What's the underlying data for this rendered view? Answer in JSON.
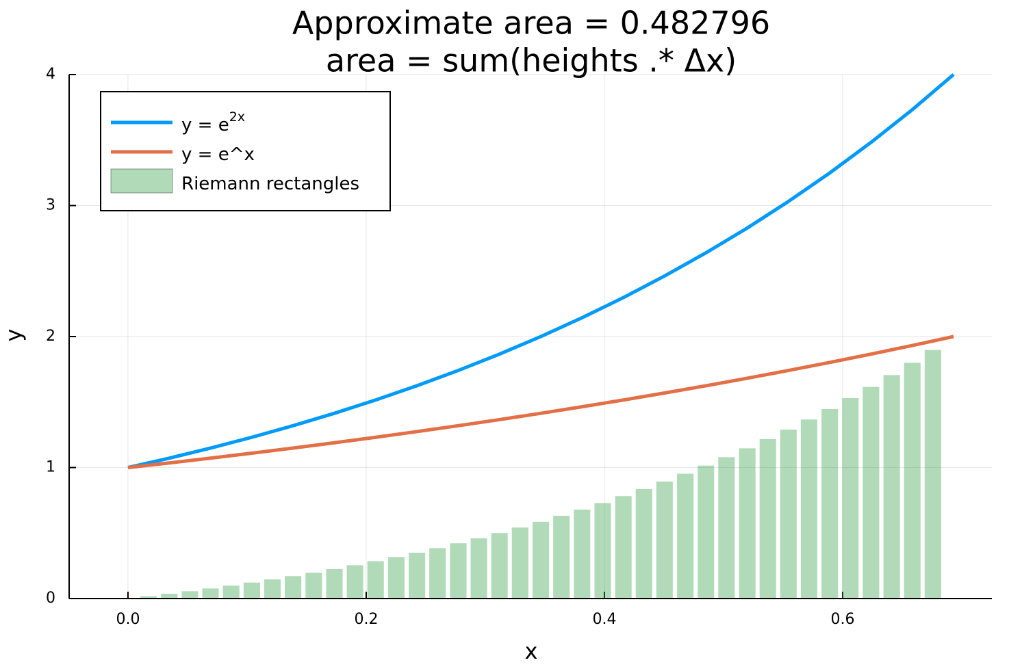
{
  "chart_data": {
    "type": "line",
    "title": "Approximate area = 0.482796",
    "subtitle": "area = sum(heights .* Δx)",
    "x_label": "x",
    "y_label": "y",
    "xlim": [
      -0.0494,
      0.7253
    ],
    "ylim": [
      0,
      4
    ],
    "xticks": [
      {
        "value": 0,
        "label": "0.0"
      },
      0.2,
      0.4,
      0.6
    ],
    "yticks": [
      0,
      1,
      2,
      3,
      4
    ],
    "grid": true,
    "legend": "topleft",
    "series": [
      {
        "name": "y = e",
        "name_sup": "2x",
        "type": "line",
        "color": "#009af9",
        "x": [
          0,
          0.0347,
          0.0693,
          0.104,
          0.1386,
          0.1733,
          0.2079,
          0.2426,
          0.2773,
          0.3119,
          0.3466,
          0.3812,
          0.4159,
          0.4505,
          0.4852,
          0.5199,
          0.5545,
          0.5892,
          0.6238,
          0.6585,
          0.6931
        ],
        "values": [
          1,
          1.0718,
          1.1487,
          1.2311,
          1.3195,
          1.4142,
          1.5157,
          1.6245,
          1.7411,
          1.8661,
          2.0,
          2.1435,
          2.2974,
          2.4623,
          2.639,
          2.8284,
          3.0314,
          3.249,
          3.4822,
          3.7321,
          4.0
        ]
      },
      {
        "name": "y = e^x",
        "type": "line",
        "color": "#e26f46",
        "x": [
          0,
          0.0347,
          0.0693,
          0.104,
          0.1386,
          0.1733,
          0.2079,
          0.2426,
          0.2773,
          0.3119,
          0.3466,
          0.3812,
          0.4159,
          0.4505,
          0.4852,
          0.5199,
          0.5545,
          0.5892,
          0.6238,
          0.6585,
          0.6931
        ],
        "values": [
          1,
          1.0353,
          1.0718,
          1.1096,
          1.1487,
          1.1892,
          1.2311,
          1.2746,
          1.3195,
          1.366,
          1.4142,
          1.4641,
          1.5157,
          1.5692,
          1.6245,
          1.6818,
          1.7411,
          1.8025,
          1.8661,
          1.9319,
          2.0
        ]
      },
      {
        "name": "Riemann rectangles",
        "type": "bar",
        "color": "#3da44d",
        "opacity": 0.4,
        "x": [
          0.0173,
          0.0347,
          0.052,
          0.0693,
          0.0866,
          0.104,
          0.1213,
          0.1386,
          0.156,
          0.1733,
          0.1906,
          0.2079,
          0.2253,
          0.2426,
          0.2599,
          0.2773,
          0.2946,
          0.3119,
          0.3292,
          0.3466,
          0.3639,
          0.3812,
          0.3986,
          0.4159,
          0.4332,
          0.4505,
          0.4679,
          0.4852,
          0.5025,
          0.5199,
          0.5372,
          0.5545,
          0.5718,
          0.5892,
          0.6065,
          0.6238,
          0.6412,
          0.6585,
          0.6758
        ],
        "values": [
          0.018,
          0.037,
          0.056,
          0.077,
          0.099,
          0.122,
          0.146,
          0.171,
          0.197,
          0.225,
          0.254,
          0.285,
          0.317,
          0.35,
          0.385,
          0.422,
          0.46,
          0.5,
          0.542,
          0.586,
          0.632,
          0.679,
          0.729,
          0.782,
          0.836,
          0.893,
          0.953,
          1.015,
          1.079,
          1.147,
          1.217,
          1.29,
          1.367,
          1.447,
          1.53,
          1.616,
          1.706,
          1.8,
          1.898
        ]
      }
    ]
  }
}
